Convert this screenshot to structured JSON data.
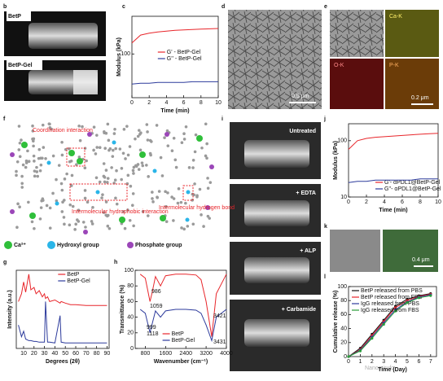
{
  "panel_labels": [
    "b",
    "c",
    "d",
    "e",
    "f",
    "g",
    "h",
    "i",
    "j",
    "k",
    "l"
  ],
  "photos": {
    "b": [
      "BetP",
      "BetP-Gel"
    ],
    "d_scale": "0.5 μm",
    "e_tiles": [
      "Ca-K",
      "O-K",
      "P-K"
    ],
    "e_scale": "0.2 μm",
    "i": [
      "Untreated",
      "+ EDTA",
      "+ ALP",
      "+ Carbamide"
    ],
    "k_scale": "0.4 μm"
  },
  "structure": {
    "annotations": [
      "Coordination interaction",
      "Intermolecular hydrophobic interaction",
      "Intermolecular hydrogen bond"
    ],
    "legend": [
      "Ca²⁺",
      "Hydroxyl group",
      "Phosphate group"
    ]
  },
  "watermark": "Nanomirufo",
  "chart_data": [
    {
      "type": "line",
      "ylabel": "Modulus (kPa)",
      "xlabel": "Time (min)",
      "yscale": "log",
      "legend": "center right",
      "x": [
        0,
        1,
        2,
        3,
        4,
        5,
        6,
        7,
        8,
        9,
        10
      ],
      "xlim": [
        0,
        10
      ],
      "xticks": [
        0,
        2,
        4,
        6,
        8,
        10
      ],
      "ylim": [
        20,
        400
      ],
      "yticks": [
        100
      ],
      "series": [
        {
          "name": "G' - BetP-Gel",
          "color": "#e8262b",
          "values": [
            150,
            200,
            215,
            225,
            232,
            238,
            242,
            246,
            249,
            252,
            255
          ]
        },
        {
          "name": "G'' - BetP-Gel",
          "color": "#2d3b9c",
          "values": [
            33,
            34,
            34,
            35,
            35,
            35,
            35,
            36,
            36,
            36,
            36
          ]
        }
      ]
    },
    {
      "type": "line",
      "ylabel": "Modulus (kPa)",
      "xlabel": "Time (min)",
      "yscale": "log",
      "legend": "lower right",
      "x": [
        0,
        1,
        2,
        3,
        4,
        5,
        6,
        7,
        8,
        9,
        10
      ],
      "xlim": [
        0,
        10
      ],
      "xticks": [
        0,
        2,
        4,
        6,
        8,
        10
      ],
      "ylim": [
        10,
        200
      ],
      "yticks": [
        10,
        100
      ],
      "series": [
        {
          "name": "G'- αPDL1@BetP-Gel",
          "color": "#e8262b",
          "values": [
            70,
            100,
            110,
            115,
            118,
            121,
            124,
            127,
            130,
            133,
            135
          ]
        },
        {
          "name": "G''- αPDL1@BetP-Gel",
          "color": "#2d3b9c",
          "values": [
            18,
            19,
            19,
            20,
            20,
            20,
            20,
            20,
            21,
            21,
            21
          ]
        }
      ]
    },
    {
      "type": "line",
      "ylabel": "Cumulative release (%)",
      "xlabel": "Time (Day)",
      "legend": "upper left",
      "markers": true,
      "x": [
        0,
        1,
        2,
        3,
        4,
        5,
        6,
        7
      ],
      "xlim": [
        0,
        7.5
      ],
      "xticks": [
        0,
        1,
        2,
        3,
        4,
        5,
        6,
        7
      ],
      "ylim": [
        0,
        100
      ],
      "yticks": [
        0,
        20,
        40,
        60,
        80,
        100
      ],
      "series": [
        {
          "name": "BetP released from PBS",
          "color": "#111111",
          "values": [
            0,
            12,
            32,
            52,
            72,
            82,
            87,
            90
          ]
        },
        {
          "name": "BetP released from FBS",
          "color": "#e8262b",
          "values": [
            0,
            10,
            30,
            50,
            70,
            80,
            86,
            89
          ]
        },
        {
          "name": "IgG released from PBS",
          "color": "#2d3b9c",
          "values": [
            0,
            9,
            28,
            48,
            67,
            78,
            85,
            88
          ]
        },
        {
          "name": "IgG released from FBS",
          "color": "#2a9d3a",
          "values": [
            0,
            8,
            26,
            46,
            65,
            77,
            84,
            87
          ]
        }
      ]
    },
    {
      "type": "line",
      "ylabel": "Intensity (a.u.)",
      "xlabel": "Degrees (2θ)",
      "legend": "upper right",
      "x": [
        5,
        8,
        10,
        12,
        15,
        17,
        20,
        22,
        25,
        28,
        30,
        31,
        33,
        35,
        40,
        45,
        46,
        50,
        55,
        60,
        70,
        80,
        90
      ],
      "xlim": [
        3,
        92
      ],
      "xticks": [
        10,
        20,
        30,
        40,
        50,
        60,
        70,
        80,
        90
      ],
      "ylim": [
        0,
        100
      ],
      "series": [
        {
          "name": "BetP",
          "color": "#e8262b",
          "values": [
            60,
            70,
            85,
            72,
            95,
            75,
            78,
            70,
            74,
            66,
            70,
            64,
            66,
            60,
            62,
            58,
            60,
            58,
            56,
            56,
            55,
            55,
            55
          ]
        },
        {
          "name": "BetP-Gel",
          "color": "#2d3b9c",
          "values": [
            30,
            15,
            22,
            12,
            10,
            10,
            9,
            9,
            8,
            8,
            8,
            60,
            8,
            8,
            7,
            42,
            8,
            7,
            7,
            7,
            7,
            7,
            7
          ]
        }
      ]
    },
    {
      "type": "line",
      "ylabel": "Transmittance (%)",
      "xlabel": "Wavenumber (cm⁻¹)",
      "legend": "lower right",
      "x": [
        600,
        800,
        986,
        1059,
        1200,
        1400,
        1600,
        2000,
        2400,
        2800,
        3000,
        3200,
        3421,
        3600,
        4000
      ],
      "xlim": [
        400,
        4000
      ],
      "xticks": [
        800,
        1600,
        2400,
        3200,
        4000
      ],
      "ylim": [
        0,
        100
      ],
      "yticks": [
        0,
        20,
        40,
        60,
        80,
        100
      ],
      "annotations": [
        "986",
        "1059",
        "999",
        "1118",
        "3421",
        "3431"
      ],
      "series": [
        {
          "name": "BetP",
          "color": "#e8262b",
          "values": [
            95,
            90,
            60,
            70,
            92,
            80,
            93,
            95,
            95,
            94,
            88,
            60,
            15,
            70,
            95
          ]
        },
        {
          "name": "BetP-Gel",
          "color": "#2d3b9c",
          "values": [
            50,
            45,
            20,
            30,
            48,
            40,
            48,
            50,
            50,
            49,
            45,
            30,
            10,
            40,
            50
          ]
        }
      ]
    }
  ]
}
